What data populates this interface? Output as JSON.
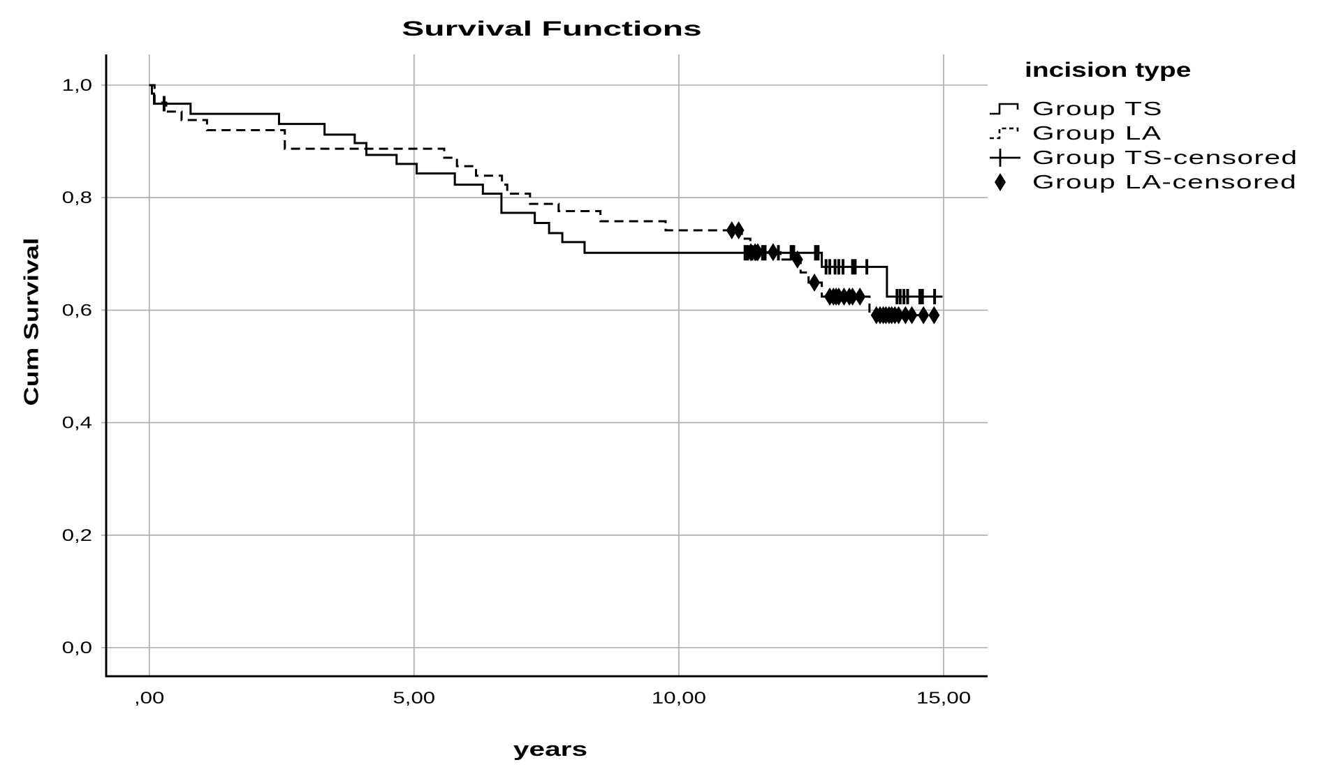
{
  "title": "Survival Functions",
  "axes": {
    "x_label": "years",
    "y_label": "Cum Survival",
    "x_ticks": [
      ",00",
      "5,00",
      "10,00",
      "15,00"
    ],
    "x_tick_values": [
      0,
      5,
      10,
      15
    ],
    "y_ticks": [
      "0,0",
      "0,2",
      "0,4",
      "0,6",
      "0,8",
      "1,0"
    ],
    "y_tick_values": [
      0,
      0.2,
      0.4,
      0.6,
      0.8,
      1.0
    ]
  },
  "legend": {
    "title": "incision type",
    "items": [
      {
        "label": "Group TS",
        "icon": "solid-step-line"
      },
      {
        "label": "Group LA",
        "icon": "dashed-step-line"
      },
      {
        "label": "Group TS-censored",
        "icon": "plus-marker"
      },
      {
        "label": "Group LA-censored",
        "icon": "diamond-marker"
      }
    ]
  },
  "colors": {
    "line": "#000000",
    "grid": "#ababab",
    "background": "#ffffff"
  },
  "chart_data": {
    "type": "line",
    "variant": "kaplan-meier-step",
    "title": "Survival Functions",
    "xlabel": "years",
    "ylabel": "Cum Survival",
    "xlim": [
      -0.81,
      15.83
    ],
    "ylim": [
      -0.05,
      1.05
    ],
    "grid": true,
    "legend_position": "right",
    "series": [
      {
        "name": "Group TS",
        "line_style": "solid",
        "color": "#000000",
        "censor_marker": "tick",
        "steps": [
          [
            0,
            1.0
          ],
          [
            0.05,
            0.985
          ],
          [
            0.09,
            0.967
          ],
          [
            0.78,
            0.949
          ],
          [
            2.45,
            0.931
          ],
          [
            3.31,
            0.912
          ],
          [
            3.88,
            0.897
          ],
          [
            4.1,
            0.876
          ],
          [
            4.67,
            0.86
          ],
          [
            5.05,
            0.843
          ],
          [
            5.77,
            0.823
          ],
          [
            6.3,
            0.807
          ],
          [
            6.65,
            0.773
          ],
          [
            7.28,
            0.755
          ],
          [
            7.55,
            0.737
          ],
          [
            7.8,
            0.721
          ],
          [
            8.22,
            0.702
          ],
          [
            12.7,
            0.677
          ],
          [
            13.93,
            0.624
          ]
        ],
        "end_time": 14.98,
        "censored": [
          [
            0.28,
            0.967
          ],
          [
            11.25,
            0.702
          ],
          [
            11.3,
            0.702
          ],
          [
            11.38,
            0.702
          ],
          [
            11.45,
            0.702
          ],
          [
            11.58,
            0.702
          ],
          [
            11.63,
            0.702
          ],
          [
            11.88,
            0.702
          ],
          [
            12.12,
            0.702
          ],
          [
            12.17,
            0.702
          ],
          [
            12.58,
            0.702
          ],
          [
            12.63,
            0.702
          ],
          [
            12.78,
            0.677
          ],
          [
            12.85,
            0.677
          ],
          [
            12.95,
            0.677
          ],
          [
            13.02,
            0.677
          ],
          [
            13.1,
            0.677
          ],
          [
            13.28,
            0.677
          ],
          [
            13.33,
            0.677
          ],
          [
            13.55,
            0.677
          ],
          [
            14.12,
            0.624
          ],
          [
            14.18,
            0.624
          ],
          [
            14.25,
            0.624
          ],
          [
            14.32,
            0.624
          ],
          [
            14.55,
            0.624
          ],
          [
            14.6,
            0.624
          ],
          [
            14.83,
            0.624
          ]
        ]
      },
      {
        "name": "Group LA",
        "line_style": "dashed",
        "color": "#000000",
        "censor_marker": "diamond",
        "steps": [
          [
            0,
            1.0
          ],
          [
            0.1,
            0.969
          ],
          [
            0.32,
            0.953
          ],
          [
            0.61,
            0.938
          ],
          [
            1.09,
            0.92
          ],
          [
            2.56,
            0.887
          ],
          [
            5.57,
            0.871
          ],
          [
            5.81,
            0.856
          ],
          [
            6.17,
            0.839
          ],
          [
            6.66,
            0.823
          ],
          [
            6.76,
            0.807
          ],
          [
            7.19,
            0.789
          ],
          [
            7.73,
            0.776
          ],
          [
            8.52,
            0.758
          ],
          [
            9.75,
            0.742
          ],
          [
            11.19,
            0.727
          ],
          [
            11.35,
            0.703
          ],
          [
            11.92,
            0.69
          ],
          [
            12.3,
            0.667
          ],
          [
            12.45,
            0.649
          ],
          [
            12.7,
            0.624
          ],
          [
            13.6,
            0.591
          ]
        ],
        "end_time": 14.86,
        "censored": [
          [
            11.0,
            0.742
          ],
          [
            11.13,
            0.742
          ],
          [
            11.36,
            0.703
          ],
          [
            11.44,
            0.703
          ],
          [
            11.49,
            0.703
          ],
          [
            11.78,
            0.703
          ],
          [
            12.24,
            0.69
          ],
          [
            12.56,
            0.649
          ],
          [
            12.85,
            0.624
          ],
          [
            12.92,
            0.624
          ],
          [
            12.97,
            0.624
          ],
          [
            13.02,
            0.624
          ],
          [
            13.12,
            0.624
          ],
          [
            13.22,
            0.624
          ],
          [
            13.28,
            0.624
          ],
          [
            13.42,
            0.624
          ],
          [
            13.73,
            0.591
          ],
          [
            13.8,
            0.591
          ],
          [
            13.86,
            0.591
          ],
          [
            13.91,
            0.591
          ],
          [
            13.97,
            0.591
          ],
          [
            14.02,
            0.591
          ],
          [
            14.08,
            0.591
          ],
          [
            14.15,
            0.591
          ],
          [
            14.28,
            0.591
          ],
          [
            14.4,
            0.591
          ],
          [
            14.62,
            0.591
          ],
          [
            14.82,
            0.591
          ]
        ]
      }
    ]
  }
}
